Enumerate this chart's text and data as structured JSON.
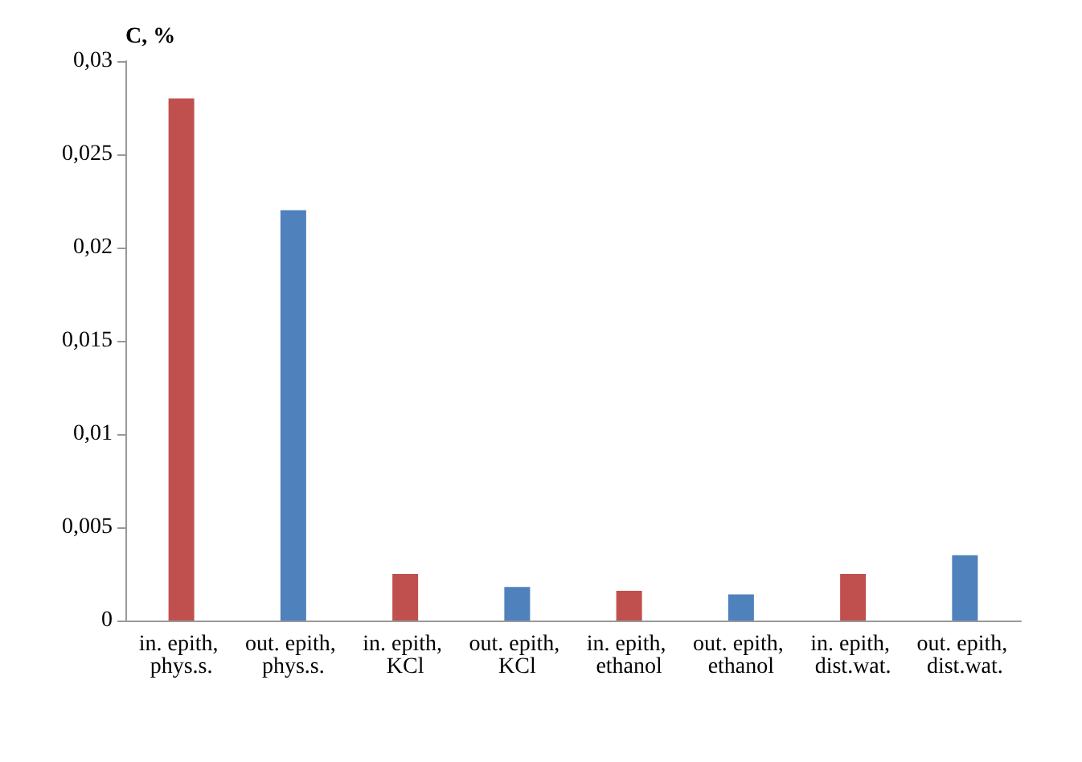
{
  "chart_data": {
    "type": "bar",
    "ylabel": "C, %",
    "categories": [
      "in. epith, phys.s.",
      "out. epith, phys.s.",
      "in. epith, KCl",
      "out. epith, KCl",
      "in. epith, ethanol",
      "out. epith, ethanol",
      "in. epith, dist.wat.",
      "out. epith, dist.wat."
    ],
    "values": [
      0.028,
      0.022,
      0.0025,
      0.0018,
      0.0016,
      0.0014,
      0.0025,
      0.0035
    ],
    "colors": [
      "#c0504d",
      "#4f81bd",
      "#c0504d",
      "#4f81bd",
      "#c0504d",
      "#4f81bd",
      "#c0504d",
      "#4f81bd"
    ],
    "ylim": [
      0,
      0.03
    ],
    "yticks": [
      {
        "value": 0,
        "label": "0"
      },
      {
        "value": 0.005,
        "label": "0,005"
      },
      {
        "value": 0.01,
        "label": "0,01"
      },
      {
        "value": 0.015,
        "label": "0,015"
      },
      {
        "value": 0.02,
        "label": "0,02"
      },
      {
        "value": 0.025,
        "label": "0,025"
      },
      {
        "value": 0.03,
        "label": "0,03"
      }
    ],
    "grid": false
  }
}
